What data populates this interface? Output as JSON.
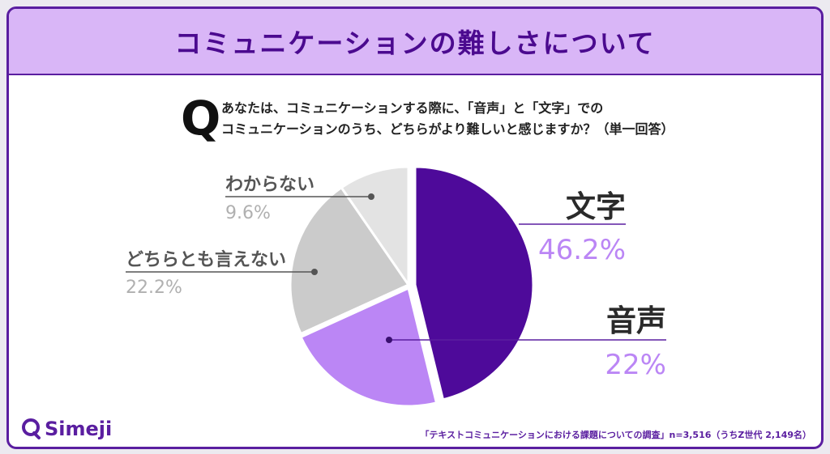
{
  "header": {
    "title": "コミュニケーションの難しさについて"
  },
  "question": {
    "mark": "Q",
    "line1": "あなたは、コミュニケーションする際に、「音声」と「文字」での",
    "line2": "コミュニケーションのうち、どちらがより難しいと感じますか？（単一回答）"
  },
  "chart_data": {
    "type": "pie",
    "slices": [
      {
        "label": "文字",
        "value_label": "46.2%",
        "value": 46.2,
        "color": "#4e0a9a"
      },
      {
        "label": "音声",
        "value_label": "22%",
        "value": 22.0,
        "color": "#bb86f5"
      },
      {
        "label": "どちらとも言えない",
        "value_label": "22.2%",
        "value": 22.2,
        "color": "#cbcbcb"
      },
      {
        "label": "わからない",
        "value_label": "9.6%",
        "value": 9.6,
        "color": "#e3e3e3"
      }
    ]
  },
  "brand": {
    "name": "Simeji",
    "color": "#5a1ea0"
  },
  "footer": {
    "source": "「テキストコミュニケーションにおける課題についての調査」n=3,516（うちZ世代 2,149名）"
  }
}
